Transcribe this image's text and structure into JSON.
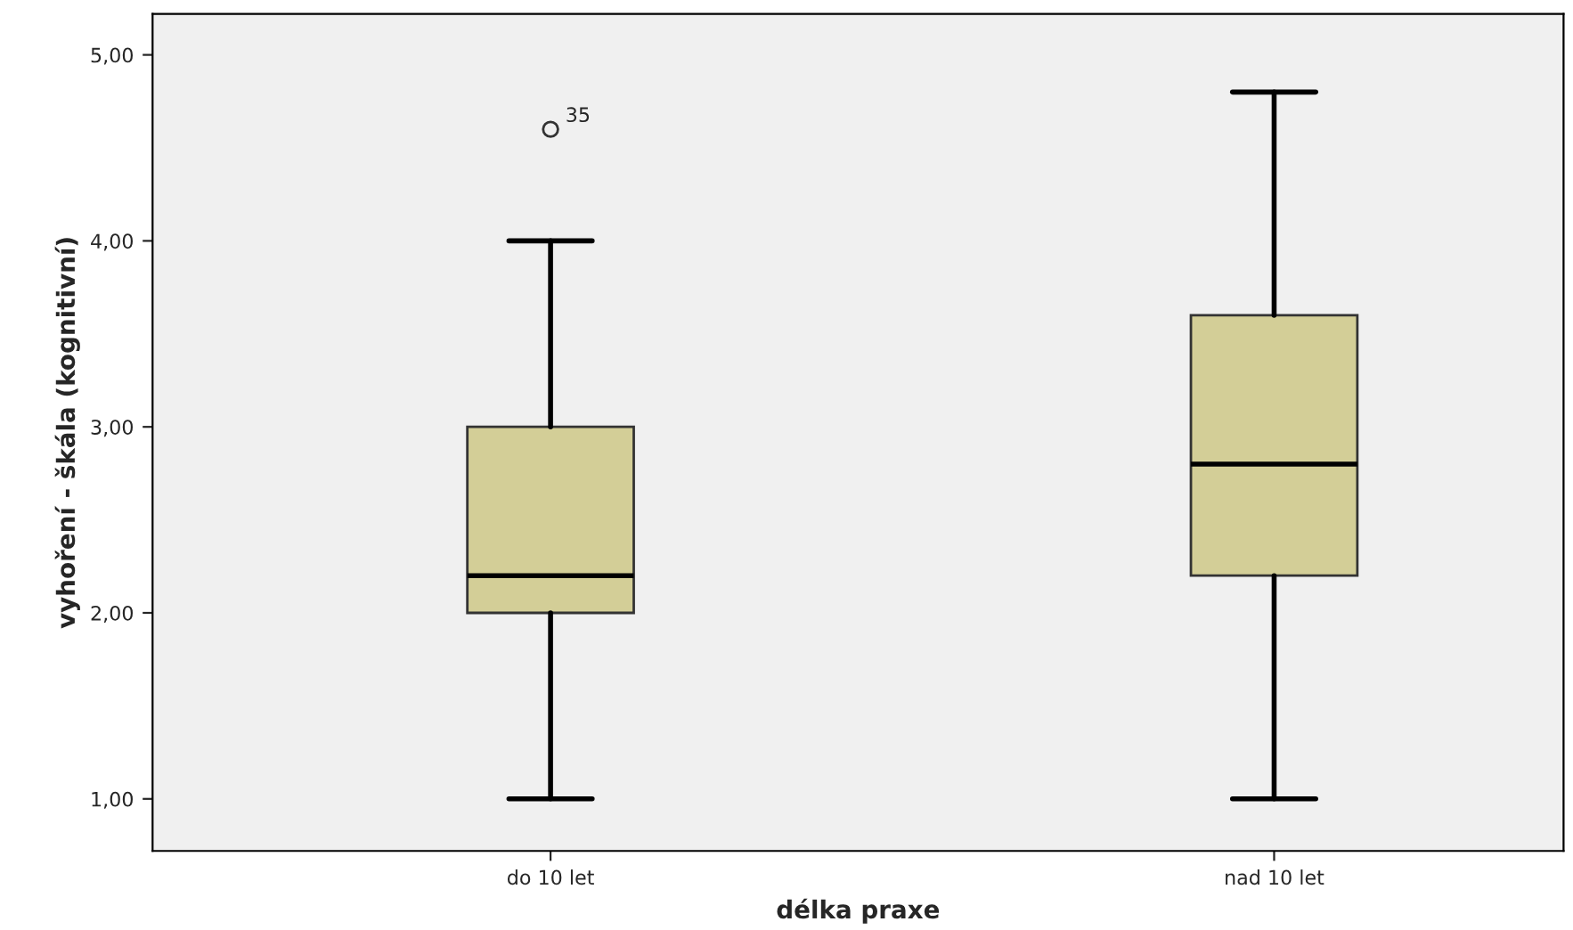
{
  "chart_data": {
    "type": "box",
    "xlabel": "délka praxe",
    "ylabel": "vyhoření - škála (kognitivní)",
    "categories": [
      "do 10 let",
      "nad 10 let"
    ],
    "boxes": [
      {
        "low": 1.0,
        "q1": 2.0,
        "median": 2.2,
        "q3": 3.0,
        "high": 4.0,
        "outliers": [
          4.6
        ]
      },
      {
        "low": 1.0,
        "q1": 2.2,
        "median": 2.8,
        "q3": 3.6,
        "high": 4.8
      }
    ],
    "color": "#d3ce97",
    "ylim": [
      0.72,
      5.22
    ],
    "yticks": [
      {
        "value": 1,
        "label": "1,00"
      },
      {
        "value": 2,
        "label": "2,00"
      },
      {
        "value": 3,
        "label": "3,00"
      },
      {
        "value": 4,
        "label": "4,00"
      },
      {
        "value": 5,
        "label": "5,00"
      }
    ],
    "annotations": [
      "35"
    ],
    "grid": false
  }
}
